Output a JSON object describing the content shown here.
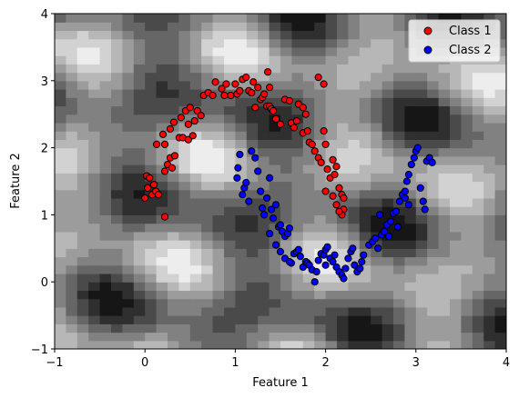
{
  "chart_data": {
    "type": "scatter",
    "xlabel": "Feature 1",
    "ylabel": "Feature 2",
    "xlim": [
      -1,
      4
    ],
    "ylim": [
      -1,
      4
    ],
    "x_ticks": [
      -1,
      0,
      1,
      2,
      3,
      4
    ],
    "y_ticks": [
      -1,
      0,
      1,
      2,
      3,
      4
    ],
    "x_tick_labels": [
      "−1",
      "0",
      "1",
      "2",
      "3",
      "4"
    ],
    "y_tick_labels": [
      "−1",
      "0",
      "1",
      "2",
      "3",
      "4"
    ],
    "legend_position": "top-right",
    "background": "filled contour of classifier output, grayscale",
    "background_colors": [
      "#161616",
      "#2f2f2f",
      "#4a4a4a",
      "#666666",
      "#818181",
      "#9c9c9c",
      "#b7b7b7",
      "#d2d2d2",
      "#ededed"
    ],
    "series": [
      {
        "name": "Class 1",
        "color": "#ff0000",
        "points": [
          [
            0.0,
            1.25
          ],
          [
            0.02,
            1.58
          ],
          [
            0.05,
            1.55
          ],
          [
            0.08,
            1.3
          ],
          [
            0.12,
            1.35
          ],
          [
            0.15,
            1.3
          ],
          [
            0.03,
            1.4
          ],
          [
            0.1,
            1.45
          ],
          [
            0.22,
            0.97
          ],
          [
            0.22,
            1.65
          ],
          [
            0.25,
            1.75
          ],
          [
            0.28,
            1.85
          ],
          [
            0.3,
            1.7
          ],
          [
            0.33,
            1.88
          ],
          [
            0.13,
            2.05
          ],
          [
            0.22,
            2.05
          ],
          [
            0.2,
            2.2
          ],
          [
            0.28,
            2.28
          ],
          [
            0.32,
            2.38
          ],
          [
            0.38,
            2.15
          ],
          [
            0.42,
            2.15
          ],
          [
            0.48,
            2.12
          ],
          [
            0.53,
            2.18
          ],
          [
            0.4,
            2.45
          ],
          [
            0.45,
            2.55
          ],
          [
            0.48,
            2.35
          ],
          [
            0.5,
            2.6
          ],
          [
            0.55,
            2.4
          ],
          [
            0.58,
            2.55
          ],
          [
            0.62,
            2.48
          ],
          [
            0.65,
            2.78
          ],
          [
            0.7,
            2.82
          ],
          [
            0.75,
            2.78
          ],
          [
            0.78,
            2.98
          ],
          [
            0.85,
            2.88
          ],
          [
            0.88,
            2.78
          ],
          [
            0.9,
            2.95
          ],
          [
            0.95,
            2.78
          ],
          [
            1.0,
            2.95
          ],
          [
            1.02,
            2.8
          ],
          [
            1.05,
            2.85
          ],
          [
            1.08,
            3.02
          ],
          [
            1.12,
            3.05
          ],
          [
            1.15,
            2.85
          ],
          [
            1.18,
            2.82
          ],
          [
            1.2,
            2.98
          ],
          [
            1.22,
            2.6
          ],
          [
            1.25,
            2.9
          ],
          [
            1.28,
            2.72
          ],
          [
            1.3,
            2.75
          ],
          [
            1.32,
            2.8
          ],
          [
            1.35,
            2.62
          ],
          [
            1.38,
            2.62
          ],
          [
            1.4,
            2.58
          ],
          [
            1.42,
            2.55
          ],
          [
            1.38,
            2.9
          ],
          [
            1.36,
            3.13
          ],
          [
            1.45,
            2.43
          ],
          [
            1.5,
            2.35
          ],
          [
            1.55,
            2.72
          ],
          [
            1.6,
            2.7
          ],
          [
            1.62,
            2.37
          ],
          [
            1.65,
            2.3
          ],
          [
            1.68,
            2.4
          ],
          [
            1.7,
            2.65
          ],
          [
            1.75,
            2.6
          ],
          [
            1.75,
            2.22
          ],
          [
            1.78,
            2.5
          ],
          [
            1.8,
            2.25
          ],
          [
            1.82,
            2.08
          ],
          [
            1.85,
            2.05
          ],
          [
            1.88,
            1.95
          ],
          [
            1.92,
            1.85
          ],
          [
            1.95,
            1.78
          ],
          [
            1.98,
            2.25
          ],
          [
            2.0,
            2.05
          ],
          [
            2.02,
            1.68
          ],
          [
            2.05,
            1.55
          ],
          [
            2.08,
            1.82
          ],
          [
            2.1,
            1.6
          ],
          [
            2.12,
            1.72
          ],
          [
            2.15,
            1.4
          ],
          [
            2.18,
            1.3
          ],
          [
            2.2,
            1.25
          ],
          [
            2.2,
            1.08
          ],
          [
            2.18,
            1.0
          ],
          [
            2.15,
            1.05
          ],
          [
            2.12,
            1.15
          ],
          [
            2.08,
            1.28
          ],
          [
            2.0,
            1.35
          ],
          [
            1.98,
            2.95
          ],
          [
            1.92,
            3.05
          ]
        ]
      },
      {
        "name": "Class 2",
        "color": "#0000ff",
        "points": [
          [
            1.02,
            1.55
          ],
          [
            1.03,
            1.7
          ],
          [
            1.05,
            1.9
          ],
          [
            1.08,
            1.3
          ],
          [
            1.1,
            1.4
          ],
          [
            1.12,
            1.48
          ],
          [
            1.15,
            1.2
          ],
          [
            1.18,
            1.95
          ],
          [
            1.22,
            1.85
          ],
          [
            1.25,
            1.65
          ],
          [
            1.28,
            1.35
          ],
          [
            1.3,
            1.1
          ],
          [
            1.32,
            1.0
          ],
          [
            1.35,
            1.25
          ],
          [
            1.38,
            1.55
          ],
          [
            1.4,
            1.08
          ],
          [
            1.42,
            0.95
          ],
          [
            1.45,
            1.15
          ],
          [
            1.48,
            0.82
          ],
          [
            1.5,
            0.85
          ],
          [
            1.52,
            0.75
          ],
          [
            1.55,
            0.68
          ],
          [
            1.58,
            0.72
          ],
          [
            1.6,
            0.8
          ],
          [
            1.65,
            0.42
          ],
          [
            1.68,
            0.45
          ],
          [
            1.7,
            0.48
          ],
          [
            1.72,
            0.38
          ],
          [
            1.75,
            0.22
          ],
          [
            1.78,
            0.3
          ],
          [
            1.8,
            0.28
          ],
          [
            1.82,
            0.25
          ],
          [
            1.85,
            0.18
          ],
          [
            1.88,
            0.0
          ],
          [
            1.9,
            0.15
          ],
          [
            1.92,
            0.32
          ],
          [
            1.95,
            0.42
          ],
          [
            1.98,
            0.4
          ],
          [
            2.0,
            0.48
          ],
          [
            2.02,
            0.52
          ],
          [
            2.05,
            0.35
          ],
          [
            2.08,
            0.3
          ],
          [
            2.1,
            0.4
          ],
          [
            2.12,
            0.22
          ],
          [
            2.15,
            0.15
          ],
          [
            2.18,
            0.1
          ],
          [
            2.2,
            0.05
          ],
          [
            2.22,
            0.2
          ],
          [
            2.25,
            0.35
          ],
          [
            2.28,
            0.45
          ],
          [
            2.3,
            0.5
          ],
          [
            2.32,
            0.25
          ],
          [
            2.35,
            0.15
          ],
          [
            2.38,
            0.2
          ],
          [
            2.4,
            0.3
          ],
          [
            2.42,
            0.4
          ],
          [
            2.48,
            0.55
          ],
          [
            2.52,
            0.6
          ],
          [
            2.55,
            0.65
          ],
          [
            2.58,
            0.5
          ],
          [
            2.62,
            0.7
          ],
          [
            2.65,
            0.75
          ],
          [
            2.68,
            0.85
          ],
          [
            2.72,
            0.9
          ],
          [
            2.75,
            1.02
          ],
          [
            2.78,
            1.05
          ],
          [
            2.8,
            0.82
          ],
          [
            2.82,
            1.2
          ],
          [
            2.85,
            1.3
          ],
          [
            2.88,
            1.25
          ],
          [
            2.9,
            1.5
          ],
          [
            2.92,
            1.6
          ],
          [
            2.95,
            1.75
          ],
          [
            2.98,
            1.85
          ],
          [
            3.0,
            1.95
          ],
          [
            3.02,
            2.0
          ],
          [
            3.05,
            1.4
          ],
          [
            3.08,
            1.2
          ],
          [
            3.1,
            1.08
          ],
          [
            3.12,
            1.8
          ],
          [
            3.15,
            1.85
          ],
          [
            3.18,
            1.78
          ],
          [
            2.6,
            1.0
          ],
          [
            2.7,
            0.68
          ],
          [
            2.88,
            1.35
          ],
          [
            2.92,
            1.15
          ],
          [
            1.62,
            0.28
          ],
          [
            1.38,
            0.72
          ],
          [
            1.45,
            0.55
          ],
          [
            1.5,
            0.45
          ],
          [
            1.55,
            0.35
          ],
          [
            1.6,
            0.3
          ],
          [
            2.0,
            0.25
          ]
        ]
      }
    ]
  }
}
